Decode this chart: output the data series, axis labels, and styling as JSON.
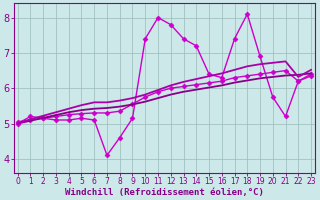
{
  "xlabel": "Windchill (Refroidissement éolien,°C)",
  "x_values": [
    0,
    1,
    2,
    3,
    4,
    5,
    6,
    7,
    8,
    9,
    10,
    11,
    12,
    13,
    14,
    15,
    16,
    17,
    18,
    19,
    20,
    21,
    22,
    23
  ],
  "series": [
    {
      "y": [
        5.0,
        5.2,
        5.15,
        5.1,
        5.1,
        5.15,
        5.1,
        4.1,
        4.6,
        5.15,
        7.4,
        8.0,
        7.8,
        7.4,
        7.2,
        6.4,
        6.3,
        7.4,
        8.1,
        6.9,
        5.75,
        5.2,
        6.2,
        6.35
      ],
      "color": "#cc00cc",
      "linewidth": 1.0,
      "marker": "D",
      "markersize": 2.5
    },
    {
      "y": [
        5.05,
        5.1,
        5.15,
        5.2,
        5.25,
        5.28,
        5.3,
        5.3,
        5.35,
        5.55,
        5.75,
        5.9,
        6.0,
        6.05,
        6.1,
        6.15,
        6.2,
        6.3,
        6.35,
        6.4,
        6.45,
        6.5,
        6.2,
        6.4
      ],
      "color": "#cc00cc",
      "linewidth": 1.0,
      "marker": "D",
      "markersize": 2.5
    },
    {
      "y": [
        5.0,
        5.08,
        5.16,
        5.24,
        5.32,
        5.38,
        5.42,
        5.44,
        5.48,
        5.54,
        5.62,
        5.72,
        5.82,
        5.9,
        5.96,
        6.02,
        6.08,
        6.16,
        6.22,
        6.28,
        6.32,
        6.36,
        6.38,
        6.42
      ],
      "color": "#880088",
      "linewidth": 1.3,
      "marker": null,
      "markersize": 0
    },
    {
      "y": [
        5.0,
        5.12,
        5.22,
        5.32,
        5.42,
        5.52,
        5.6,
        5.6,
        5.65,
        5.72,
        5.82,
        5.95,
        6.08,
        6.18,
        6.26,
        6.34,
        6.42,
        6.52,
        6.62,
        6.68,
        6.72,
        6.76,
        6.32,
        6.52
      ],
      "color": "#aa00aa",
      "linewidth": 1.3,
      "marker": null,
      "markersize": 0
    }
  ],
  "xlim": [
    -0.3,
    23.3
  ],
  "ylim": [
    3.6,
    8.4
  ],
  "yticks": [
    4,
    5,
    6,
    7,
    8
  ],
  "xticks": [
    0,
    1,
    2,
    3,
    4,
    5,
    6,
    7,
    8,
    9,
    10,
    11,
    12,
    13,
    14,
    15,
    16,
    17,
    18,
    19,
    20,
    21,
    22,
    23
  ],
  "bg_color": "#cce8e8",
  "line_color": "#880088",
  "grid_color": "#99bbbb",
  "tick_color": "#880088",
  "xlabel_fontsize": 6.5,
  "ytick_fontsize": 7,
  "xtick_fontsize": 5.5
}
